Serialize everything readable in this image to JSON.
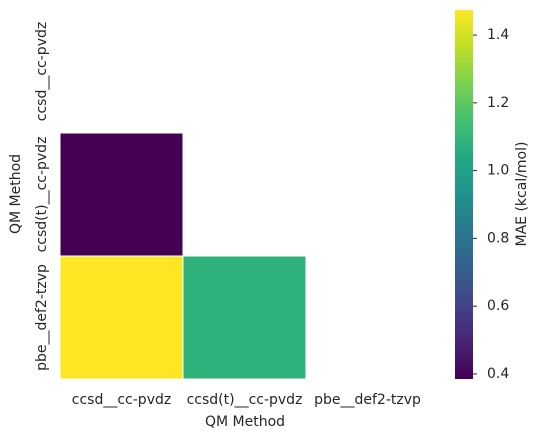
{
  "chart_data": {
    "type": "heatmap",
    "x_categories": [
      "ccsd__cc-pvdz",
      "ccsd(t)__cc-pvdz",
      "pbe__def2-tzvp"
    ],
    "y_categories": [
      "ccsd__cc-pvdz",
      "ccsd(t)__cc-pvdz",
      "pbe__def2-tzvp"
    ],
    "xlabel": "QM Method",
    "ylabel": "QM Method",
    "values": [
      [
        null,
        null,
        null
      ],
      [
        0.385,
        null,
        null
      ],
      [
        1.474,
        1.08,
        null
      ]
    ],
    "colormap": "viridis",
    "colorbar_label": "MAE (kcal/mol)",
    "clim": [
      0.385,
      1.474
    ],
    "cticks": [
      0.4,
      0.6,
      0.8,
      {
        "value": 1.0,
        "label": "1.0"
      },
      1.2,
      1.4
    ]
  }
}
